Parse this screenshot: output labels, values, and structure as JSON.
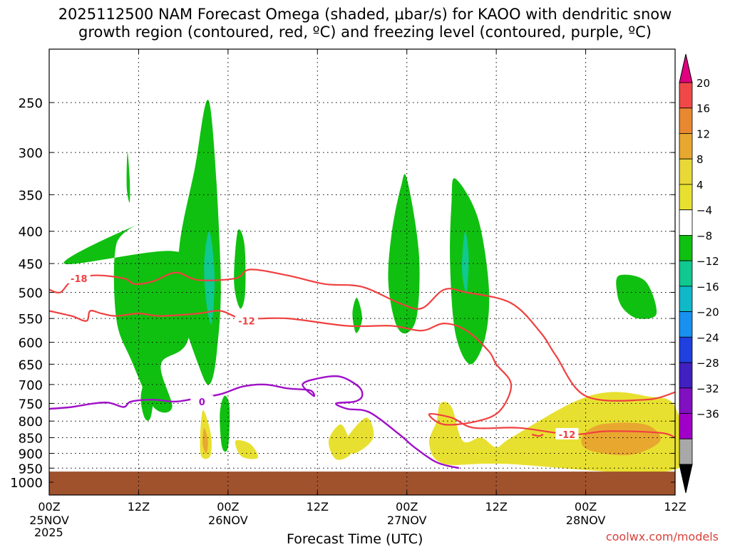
{
  "title_lines": [
    "2025112500 NAM Forecast Omega (shaded, μbar/s) for KAOO with dendritic snow",
    "growth region (contoured, red, ºC) and freezing level (contoured, purple, ºC)"
  ],
  "xlabel": "Forecast Time (UTC)",
  "year": "2025",
  "credit": "coolwx.com/models",
  "chart_data": {
    "type": "heatmap",
    "x_units": "forecast hours",
    "xlim": [
      0,
      84
    ],
    "x_ticks": [
      {
        "hour": 0,
        "label": "00Z",
        "date": "25NOV"
      },
      {
        "hour": 12,
        "label": "12Z",
        "date": ""
      },
      {
        "hour": 24,
        "label": "00Z",
        "date": "26NOV"
      },
      {
        "hour": 36,
        "label": "12Z",
        "date": ""
      },
      {
        "hour": 48,
        "label": "00Z",
        "date": "27NOV"
      },
      {
        "hour": 60,
        "label": "12Z",
        "date": ""
      },
      {
        "hour": 72,
        "label": "00Z",
        "date": "28NOV"
      },
      {
        "hour": 84,
        "label": "12Z",
        "date": ""
      }
    ],
    "y_units": "hPa",
    "ylim": [
      1050,
      200
    ],
    "y_ticks": [
      250,
      300,
      350,
      400,
      450,
      500,
      550,
      600,
      650,
      700,
      750,
      800,
      850,
      900,
      950,
      1000
    ],
    "terrain_top_hPa": 962,
    "colorbar": {
      "labels": [
        "20",
        "16",
        "12",
        "8",
        "4",
        "−4",
        "−8",
        "−12",
        "−16",
        "−20",
        "−24",
        "−28",
        "−32",
        "−36"
      ],
      "colors": [
        "#e00080",
        "#f04848",
        "#e88830",
        "#e8a830",
        "#e8d838",
        "#e8e030",
        "#ffffff",
        "#10c010",
        "#10c890",
        "#10b8c8",
        "#1890f0",
        "#2040e0",
        "#4020c0",
        "#8010c0",
        "#a000c8",
        "#a8a8a8",
        "#000000"
      ]
    },
    "omega_regions": [
      {
        "level": -8,
        "color": "#10c010",
        "points": [
          [
            2,
            450
          ],
          [
            16.5,
            430
          ],
          [
            20,
            470
          ],
          [
            18.5,
            600
          ],
          [
            15,
            650
          ],
          [
            16.5,
            760
          ],
          [
            14,
            760
          ],
          [
            11,
            640
          ],
          [
            9,
            550
          ],
          [
            9,
            420
          ],
          [
            12,
            390
          ]
        ],
        "note": "area A"
      },
      {
        "level": -8,
        "color": "#10c010",
        "points": [
          [
            21.5,
            250
          ],
          [
            23,
            460
          ],
          [
            22.5,
            620
          ],
          [
            21.5,
            700
          ],
          [
            20,
            650
          ],
          [
            17.5,
            520
          ],
          [
            17.5,
            420
          ],
          [
            19.5,
            320
          ]
        ]
      },
      {
        "level": -8,
        "color": "#10c010",
        "points": [
          [
            25.3,
            400
          ],
          [
            26.2,
            420
          ],
          [
            26.3,
            500
          ],
          [
            25.6,
            530
          ],
          [
            24.8,
            480
          ]
        ]
      },
      {
        "level": -8,
        "color": "#10c010",
        "points": [
          [
            41.3,
            510
          ],
          [
            42,
            550
          ],
          [
            41.2,
            580
          ],
          [
            40.7,
            540
          ]
        ]
      },
      {
        "level": -8,
        "color": "#10c010",
        "points": [
          [
            48,
            330
          ],
          [
            49.6,
            430
          ],
          [
            49.4,
            540
          ],
          [
            48,
            580
          ],
          [
            46.5,
            560
          ],
          [
            45.5,
            480
          ],
          [
            46,
            400
          ],
          [
            47.2,
            340
          ]
        ]
      },
      {
        "level": -8,
        "color": "#10c010",
        "points": [
          [
            54.5,
            330
          ],
          [
            57.5,
            380
          ],
          [
            59,
            490
          ],
          [
            58.5,
            590
          ],
          [
            56.5,
            650
          ],
          [
            54.5,
            580
          ],
          [
            53.8,
            450
          ],
          [
            54,
            360
          ]
        ]
      },
      {
        "level": -8,
        "color": "#10c010",
        "points": [
          [
            76.5,
            470
          ],
          [
            80,
            480
          ],
          [
            81.5,
            540
          ],
          [
            79,
            550
          ],
          [
            77,
            530
          ],
          [
            76.2,
            500
          ]
        ]
      },
      {
        "level": -8,
        "color": "#10c010",
        "points": [
          [
            13.3,
            670
          ],
          [
            14,
            720
          ],
          [
            13.6,
            790
          ],
          [
            12.8,
            790
          ],
          [
            12.3,
            730
          ]
        ]
      },
      {
        "level": -8,
        "color": "#10c010",
        "points": [
          [
            23.5,
            730
          ],
          [
            24.2,
            760
          ],
          [
            24,
            880
          ],
          [
            23.2,
            880
          ],
          [
            22.9,
            780
          ]
        ]
      },
      {
        "level": -8,
        "color": "#10c010",
        "points": [
          [
            10.5,
            300
          ],
          [
            10.8,
            330
          ],
          [
            10.8,
            360
          ],
          [
            10.4,
            340
          ]
        ]
      },
      {
        "level": -12,
        "color": "#10c890",
        "points": [
          [
            21.5,
            400
          ],
          [
            22.2,
            470
          ],
          [
            21.8,
            560
          ],
          [
            21.1,
            520
          ],
          [
            20.8,
            450
          ]
        ]
      },
      {
        "level": -12,
        "color": "#10c890",
        "points": [
          [
            55.8,
            400
          ],
          [
            56.3,
            440
          ],
          [
            56,
            500
          ],
          [
            55.4,
            460
          ]
        ]
      },
      {
        "level": 4,
        "color": "#e8e030",
        "points": [
          [
            52.5,
            750
          ],
          [
            54,
            760
          ],
          [
            55.5,
            860
          ],
          [
            58,
            850
          ],
          [
            60,
            880
          ],
          [
            62,
            850
          ],
          [
            70,
            750
          ],
          [
            75,
            720
          ],
          [
            80,
            730
          ],
          [
            84,
            760
          ],
          [
            84,
            955
          ],
          [
            61,
            935
          ],
          [
            53,
            935
          ],
          [
            51,
            870
          ],
          [
            52,
            800
          ]
        ]
      },
      {
        "level": 4,
        "color": "#e8e030",
        "points": [
          [
            37.5,
            860
          ],
          [
            39,
            810
          ],
          [
            40,
            840
          ],
          [
            40.5,
            900
          ],
          [
            38.5,
            920
          ]
        ]
      },
      {
        "level": 4,
        "color": "#e8e030",
        "points": [
          [
            42.5,
            790
          ],
          [
            43.5,
            850
          ],
          [
            41,
            900
          ],
          [
            39.5,
            870
          ]
        ]
      },
      {
        "level": 4,
        "color": "#e8e030",
        "points": [
          [
            20.6,
            770
          ],
          [
            21.7,
            840
          ],
          [
            21.6,
            910
          ],
          [
            20.3,
            900
          ]
        ]
      },
      {
        "level": 4,
        "color": "#e8e030",
        "points": [
          [
            25,
            860
          ],
          [
            27,
            870
          ],
          [
            28,
            915
          ],
          [
            25.8,
            910
          ]
        ]
      },
      {
        "level": 8,
        "color": "#e8a830",
        "points": [
          [
            74,
            810
          ],
          [
            80,
            810
          ],
          [
            82,
            860
          ],
          [
            78,
            905
          ],
          [
            72.5,
            890
          ],
          [
            71.5,
            850
          ]
        ]
      },
      {
        "level": 8,
        "color": "#e8a830",
        "points": [
          [
            20.8,
            820
          ],
          [
            21.3,
            860
          ],
          [
            21.1,
            900
          ],
          [
            20.6,
            870
          ]
        ]
      }
    ],
    "dgz_contours": [
      {
        "label": "-18",
        "label_at": [
          4,
          475
        ],
        "points": [
          [
            0,
            495
          ],
          [
            1.5,
            500
          ],
          [
            3,
            480
          ],
          [
            6,
            470
          ],
          [
            10,
            475
          ],
          [
            11.5,
            485
          ],
          [
            14,
            480
          ],
          [
            17,
            465
          ],
          [
            20,
            478
          ],
          [
            25,
            475
          ],
          [
            27,
            460
          ],
          [
            32,
            470
          ],
          [
            37,
            485
          ],
          [
            42,
            490
          ],
          [
            47,
            520
          ],
          [
            50,
            530
          ],
          [
            53,
            495
          ],
          [
            56,
            500
          ],
          [
            62,
            520
          ],
          [
            66,
            580
          ],
          [
            68,
            630
          ],
          [
            72,
            730
          ],
          [
            80,
            740
          ],
          [
            84,
            720
          ]
        ]
      },
      {
        "label": "-12",
        "label_at": [
          26.5,
          555
        ],
        "points": [
          [
            0,
            535
          ],
          [
            3,
            545
          ],
          [
            5,
            555
          ],
          [
            5.5,
            535
          ],
          [
            7,
            540
          ],
          [
            9,
            545
          ],
          [
            12,
            540
          ],
          [
            15,
            545
          ],
          [
            20,
            540
          ],
          [
            23,
            535
          ],
          [
            26,
            550
          ],
          [
            32,
            550
          ],
          [
            40,
            565
          ],
          [
            46,
            565
          ],
          [
            50,
            575
          ],
          [
            53,
            560
          ],
          [
            56,
            575
          ],
          [
            59,
            620
          ],
          [
            60,
            650
          ],
          [
            62,
            700
          ],
          [
            60.5,
            770
          ],
          [
            57.5,
            800
          ],
          [
            53,
            810
          ],
          [
            51,
            780
          ],
          [
            54,
            790
          ],
          [
            57,
            820
          ],
          [
            63,
            820
          ],
          [
            70,
            840
          ],
          [
            75,
            830
          ],
          [
            82,
            835
          ],
          [
            84,
            850
          ]
        ]
      },
      {
        "label": "-12",
        "label_at": [
          69.5,
          840
        ],
        "points": [
          [
            64.8,
            840
          ],
          [
            65.7,
            845
          ],
          [
            66.3,
            840
          ]
        ]
      }
    ],
    "freezing_contour": {
      "label": "0",
      "label_at": [
        20.5,
        745
      ],
      "points": [
        [
          0,
          765
        ],
        [
          3,
          760
        ],
        [
          6,
          750
        ],
        [
          8,
          748
        ],
        [
          10,
          760
        ],
        [
          11,
          745
        ],
        [
          14,
          740
        ],
        [
          17,
          745
        ],
        [
          20,
          735
        ],
        [
          23,
          725
        ],
        [
          26,
          705
        ],
        [
          29,
          700
        ],
        [
          32,
          710
        ],
        [
          35,
          715
        ],
        [
          35.5,
          730
        ],
        [
          34,
          700
        ],
        [
          36,
          685
        ],
        [
          39,
          680
        ],
        [
          41.5,
          705
        ],
        [
          42,
          730
        ],
        [
          41,
          745
        ],
        [
          38.5,
          750
        ],
        [
          40,
          765
        ],
        [
          43,
          775
        ],
        [
          47,
          840
        ],
        [
          49,
          880
        ],
        [
          52,
          930
        ],
        [
          55,
          950
        ]
      ]
    }
  }
}
